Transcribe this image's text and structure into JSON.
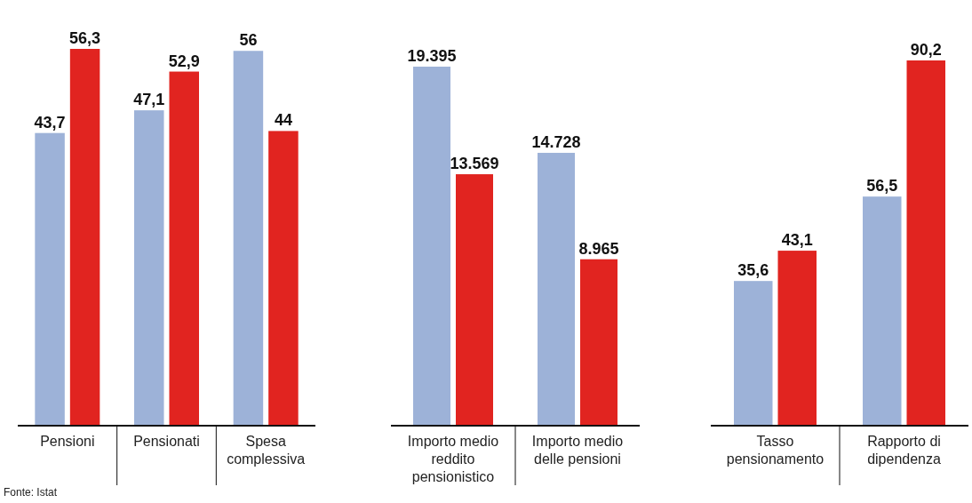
{
  "chart_data": [
    {
      "type": "bar",
      "categories": [
        "Pensioni",
        "Pensionati",
        "Spesa complessiva"
      ],
      "series": [
        {
          "color": "#9db2d8",
          "values": [
            43.7,
            47.1,
            56
          ],
          "value_labels": [
            "43,7",
            "47,1",
            "56"
          ]
        },
        {
          "color": "#e12420",
          "values": [
            56.3,
            52.9,
            44
          ],
          "value_labels": [
            "56,3",
            "52,9",
            "44"
          ]
        }
      ],
      "annotations": [
        "Fonte: Istat"
      ]
    },
    {
      "type": "bar",
      "categories": [
        "Importo medio reddito pensionistico",
        "Importo medio delle pensioni"
      ],
      "series": [
        {
          "color": "#9db2d8",
          "values": [
            19395,
            14728
          ],
          "value_labels": [
            "19.395",
            "14.728"
          ]
        },
        {
          "color": "#e12420",
          "values": [
            13569,
            8965
          ],
          "value_labels": [
            "13.569",
            "8.965"
          ]
        }
      ]
    },
    {
      "type": "bar",
      "categories": [
        "Tasso pensionamento",
        "Rapporto di dipendenza"
      ],
      "series": [
        {
          "color": "#9db2d8",
          "values": [
            35.6,
            56.5
          ],
          "value_labels": [
            "35,6",
            "56,5"
          ]
        },
        {
          "color": "#e12420",
          "values": [
            43.1,
            90.2
          ],
          "value_labels": [
            "43,1",
            "90,2"
          ]
        }
      ]
    }
  ]
}
